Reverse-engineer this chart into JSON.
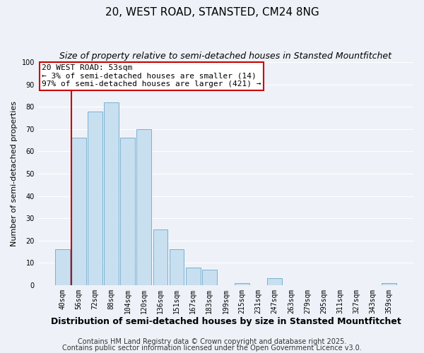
{
  "title": "20, WEST ROAD, STANSTED, CM24 8NG",
  "subtitle": "Size of property relative to semi-detached houses in Stansted Mountfitchet",
  "xlabel": "Distribution of semi-detached houses by size in Stansted Mountfitchet",
  "ylabel": "Number of semi-detached properties",
  "bar_labels": [
    "40sqm",
    "56sqm",
    "72sqm",
    "88sqm",
    "104sqm",
    "120sqm",
    "136sqm",
    "151sqm",
    "167sqm",
    "183sqm",
    "199sqm",
    "215sqm",
    "231sqm",
    "247sqm",
    "263sqm",
    "279sqm",
    "295sqm",
    "311sqm",
    "327sqm",
    "343sqm",
    "359sqm"
  ],
  "bar_values": [
    16,
    66,
    78,
    82,
    66,
    70,
    25,
    16,
    8,
    7,
    0,
    1,
    0,
    3,
    0,
    0,
    0,
    0,
    0,
    0,
    1
  ],
  "bar_color": "#c8dff0",
  "bar_edge_color": "#7ab0d0",
  "highlight_color": "#cc0000",
  "vline_x_index": 1,
  "ylim": [
    0,
    100
  ],
  "yticks": [
    0,
    10,
    20,
    30,
    40,
    50,
    60,
    70,
    80,
    90,
    100
  ],
  "annotation_title": "20 WEST ROAD: 53sqm",
  "annotation_line1": "← 3% of semi-detached houses are smaller (14)",
  "annotation_line2": "97% of semi-detached houses are larger (421) →",
  "annotation_box_color": "#ffffff",
  "annotation_box_edge_color": "#cc0000",
  "footer1": "Contains HM Land Registry data © Crown copyright and database right 2025.",
  "footer2": "Contains public sector information licensed under the Open Government Licence v3.0.",
  "background_color": "#eef2f8",
  "grid_color": "#ffffff",
  "title_fontsize": 11,
  "subtitle_fontsize": 9,
  "xlabel_fontsize": 9,
  "ylabel_fontsize": 8,
  "tick_fontsize": 7,
  "annotation_fontsize": 8,
  "footer_fontsize": 7
}
